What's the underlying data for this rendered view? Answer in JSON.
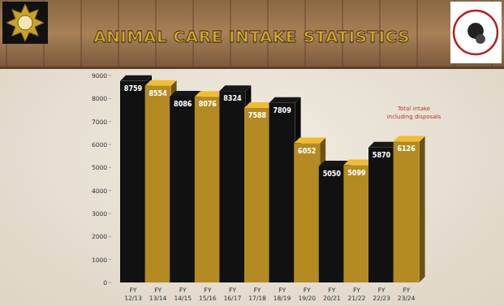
{
  "chart_data": {
    "type": "bar",
    "title": "ANIMAL CARE INTAKE STATISTICS",
    "annotation": "Total intake including disposals",
    "categories": [
      "FY 12/13",
      "FY 13/14",
      "FY 14/15",
      "FY 15/16",
      "FY 16/17",
      "FY 17/18",
      "FY 18/19",
      "FY 19/20",
      "FY 20/21",
      "FY 21/22",
      "FY 22/23",
      "FY 23/24"
    ],
    "values": [
      8759,
      8554,
      8086,
      8076,
      8324,
      7588,
      7809,
      6052,
      5050,
      5099,
      5870,
      6126
    ],
    "colors": [
      "#111111",
      "#b38b22",
      "#111111",
      "#b38b22",
      "#111111",
      "#b38b22",
      "#111111",
      "#b38b22",
      "#111111",
      "#b38b22",
      "#111111",
      "#b38b22"
    ],
    "ylim": [
      0,
      9000
    ],
    "yticks": [
      0,
      1000,
      2000,
      3000,
      4000,
      5000,
      6000,
      7000,
      8000,
      9000
    ],
    "grid": false,
    "data_labels": true
  }
}
